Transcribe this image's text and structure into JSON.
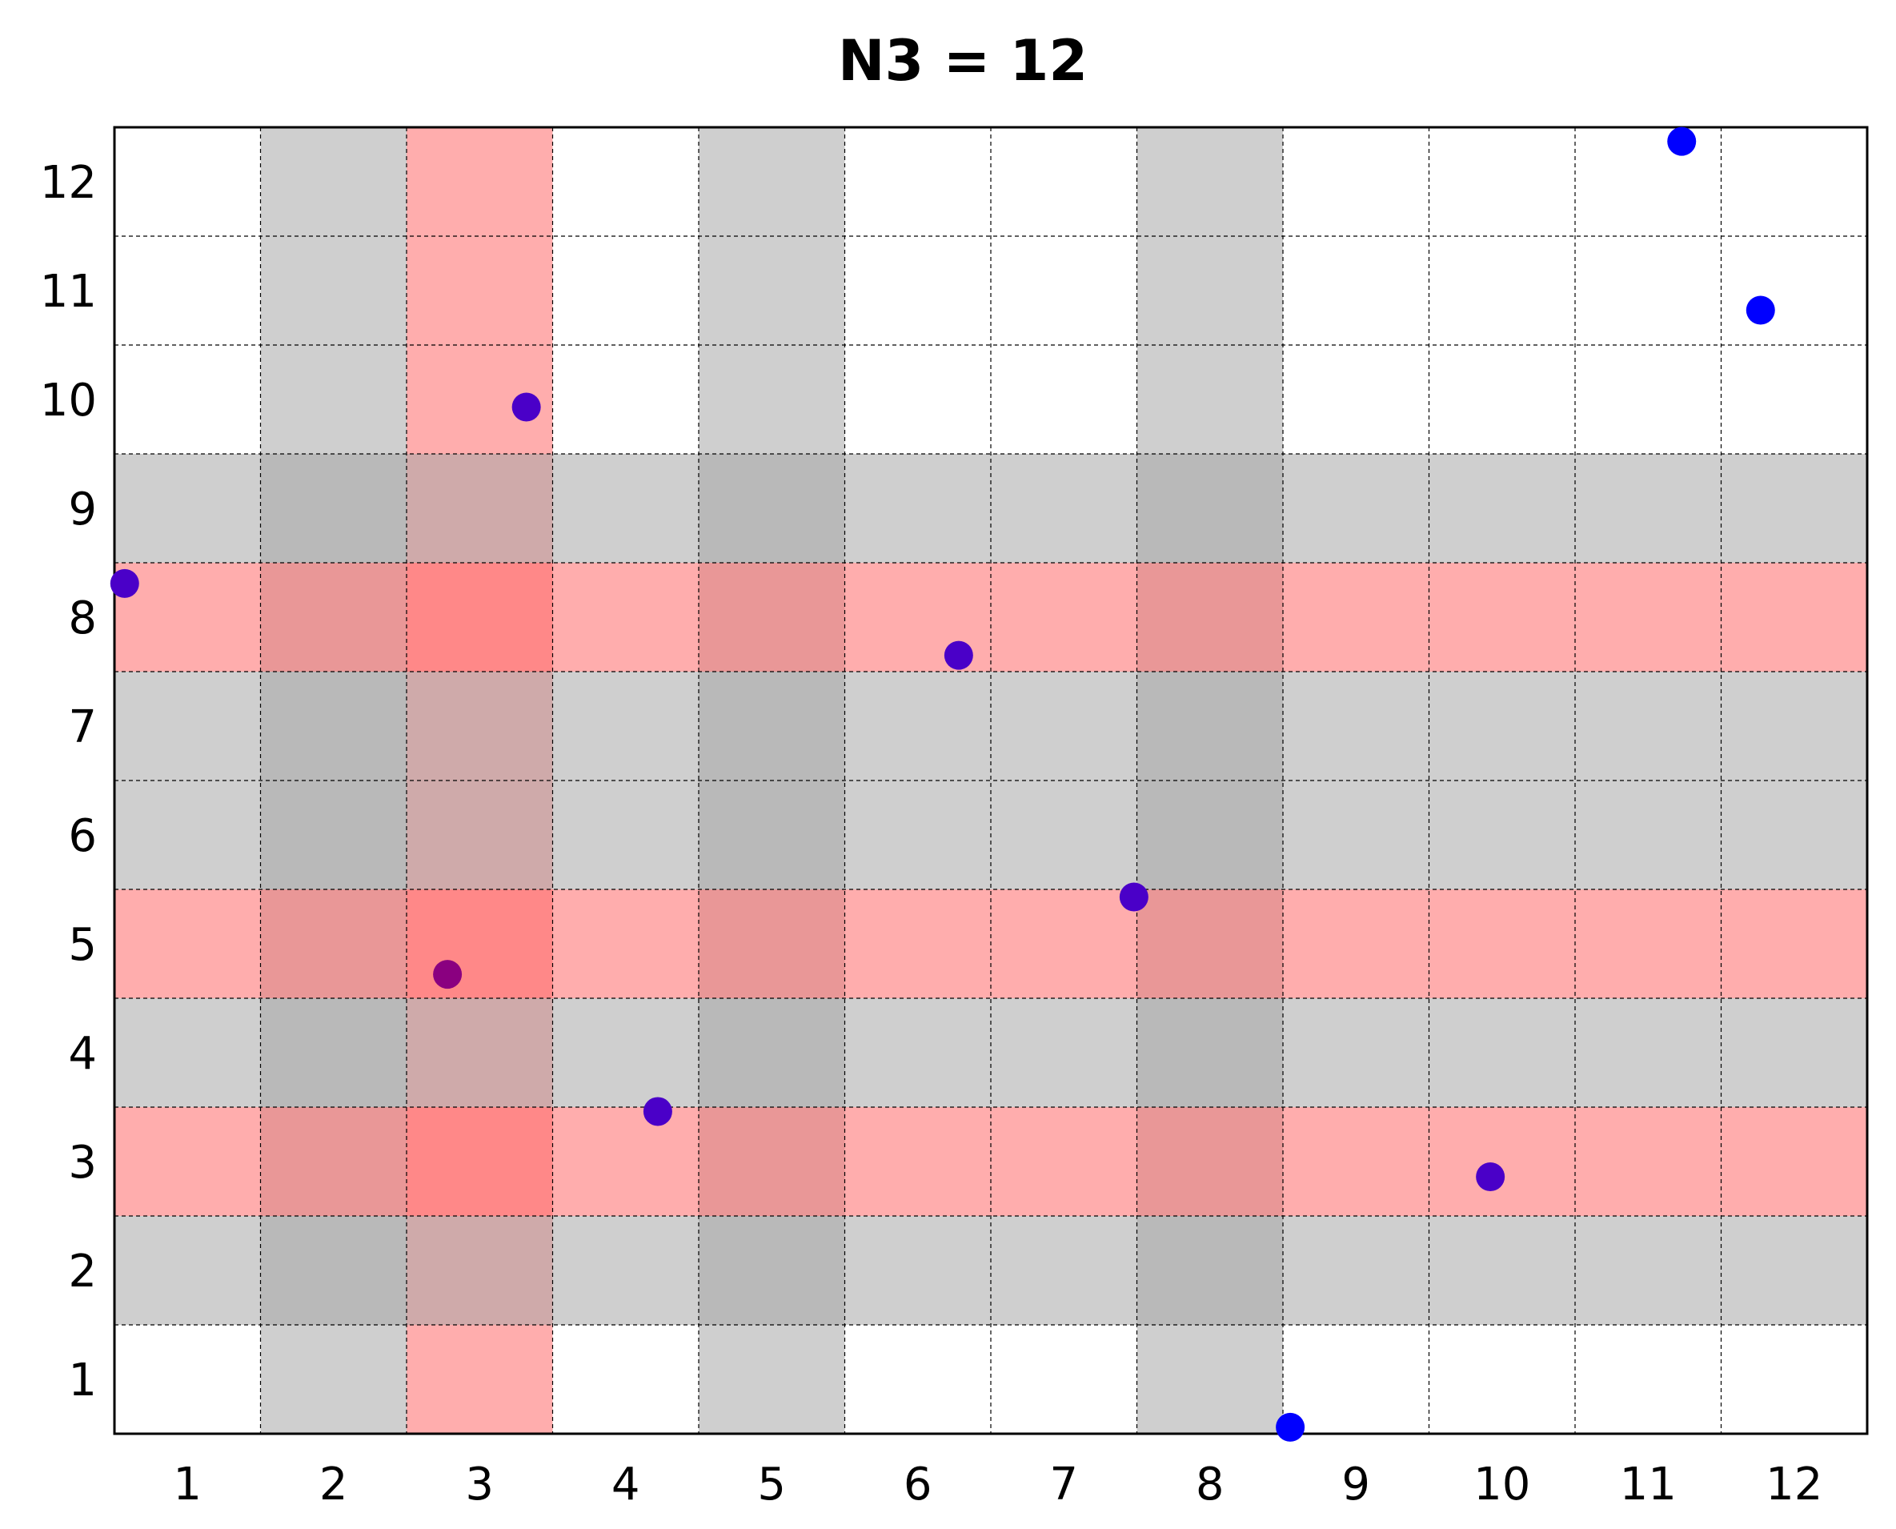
{
  "chart_data": {
    "type": "scatter",
    "title": "N3 = 12",
    "xlabel": "",
    "ylabel": "",
    "xlim": [
      0.5,
      12.5
    ],
    "ylim": [
      0.5,
      12.5
    ],
    "x_ticks": [
      "1",
      "2",
      "3",
      "4",
      "5",
      "6",
      "7",
      "8",
      "9",
      "10",
      "11",
      "12"
    ],
    "y_ticks": [
      "1",
      "2",
      "3",
      "4",
      "5",
      "6",
      "7",
      "8",
      "9",
      "10",
      "11",
      "12"
    ],
    "grid": true,
    "grid_style": "dashed",
    "colors": {
      "gray_band": "#d3d3d3",
      "red_band": "#ffb3b3",
      "point_default": "#5000c0",
      "point_colors": [
        "#0000ff",
        "#0000ff",
        "#4a00c8",
        "#4a00c8",
        "#4a00c8",
        "#4a00c8",
        "#8a0080",
        "#4a00c8",
        "#4a00c8",
        "#0000ff"
      ]
    },
    "highlight_columns": {
      "gray": [
        2,
        5,
        8
      ],
      "red": [
        3
      ]
    },
    "highlight_rows": {
      "gray": [
        2,
        4,
        6,
        7,
        9
      ],
      "red": [
        3,
        5,
        8
      ]
    },
    "points": [
      {
        "x": 11.23,
        "y": 12.37
      },
      {
        "x": 11.77,
        "y": 10.82
      },
      {
        "x": 3.32,
        "y": 9.93
      },
      {
        "x": 0.57,
        "y": 8.31
      },
      {
        "x": 6.28,
        "y": 7.65
      },
      {
        "x": 7.48,
        "y": 5.43
      },
      {
        "x": 2.78,
        "y": 4.72
      },
      {
        "x": 4.22,
        "y": 3.46
      },
      {
        "x": 9.92,
        "y": 2.86
      },
      {
        "x": 8.55,
        "y": 0.56
      }
    ]
  }
}
